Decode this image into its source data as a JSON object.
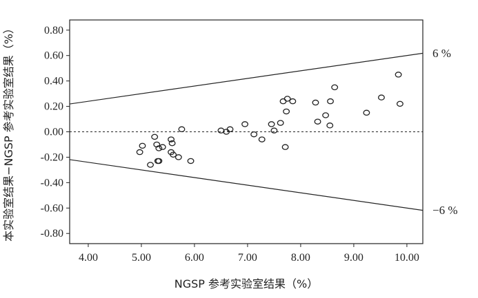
{
  "chart_data": {
    "type": "scatter",
    "title": "",
    "xlabel": "NGSP 参考实验室结果（%）",
    "ylabel": "本实验室结果−NGSP 参考实验室结果（%）",
    "xlim": [
      3.65,
      10.3
    ],
    "ylim": [
      -0.88,
      0.88
    ],
    "x_ticks": [
      "4.00",
      "5.00",
      "6.00",
      "7.00",
      "8.00",
      "9.00",
      "10.00"
    ],
    "x_tick_values": [
      4,
      5,
      6,
      7,
      8,
      9,
      10
    ],
    "y_ticks": [
      "0.80",
      "0.60",
      "0.40",
      "0.20",
      "0.00",
      "-0.20",
      "-0.40",
      "-0.60",
      "-0.80"
    ],
    "y_tick_values": [
      0.8,
      0.6,
      0.4,
      0.2,
      0.0,
      -0.2,
      -0.4,
      -0.6,
      -0.8
    ],
    "grid": false,
    "reference_lines": {
      "upper": {
        "label": "6 %",
        "slope": 0.06,
        "intercept": 0
      },
      "lower": {
        "label": "−6 %",
        "slope": -0.06,
        "intercept": 0
      },
      "zero": {
        "y": 0,
        "style": "dashed"
      }
    },
    "points": [
      {
        "x": 4.97,
        "y": -0.16
      },
      {
        "x": 5.02,
        "y": -0.11
      },
      {
        "x": 5.17,
        "y": -0.26
      },
      {
        "x": 5.25,
        "y": -0.04
      },
      {
        "x": 5.29,
        "y": -0.1
      },
      {
        "x": 5.31,
        "y": -0.23
      },
      {
        "x": 5.33,
        "y": -0.23
      },
      {
        "x": 5.33,
        "y": -0.13
      },
      {
        "x": 5.4,
        "y": -0.12
      },
      {
        "x": 5.56,
        "y": -0.06
      },
      {
        "x": 5.58,
        "y": -0.09
      },
      {
        "x": 5.56,
        "y": -0.16
      },
      {
        "x": 5.6,
        "y": -0.18
      },
      {
        "x": 5.7,
        "y": -0.2
      },
      {
        "x": 5.76,
        "y": 0.02
      },
      {
        "x": 5.93,
        "y": -0.23
      },
      {
        "x": 6.5,
        "y": 0.01
      },
      {
        "x": 6.6,
        "y": 0.0
      },
      {
        "x": 6.67,
        "y": 0.02
      },
      {
        "x": 6.95,
        "y": 0.06
      },
      {
        "x": 7.12,
        "y": -0.02
      },
      {
        "x": 7.27,
        "y": -0.06
      },
      {
        "x": 7.45,
        "y": 0.06
      },
      {
        "x": 7.5,
        "y": 0.01
      },
      {
        "x": 7.62,
        "y": 0.07
      },
      {
        "x": 7.67,
        "y": 0.24
      },
      {
        "x": 7.71,
        "y": -0.12
      },
      {
        "x": 7.73,
        "y": 0.16
      },
      {
        "x": 7.75,
        "y": 0.26
      },
      {
        "x": 7.85,
        "y": 0.24
      },
      {
        "x": 8.28,
        "y": 0.23
      },
      {
        "x": 8.32,
        "y": 0.08
      },
      {
        "x": 8.47,
        "y": 0.13
      },
      {
        "x": 8.55,
        "y": 0.05
      },
      {
        "x": 8.56,
        "y": 0.24
      },
      {
        "x": 8.64,
        "y": 0.35
      },
      {
        "x": 9.24,
        "y": 0.15
      },
      {
        "x": 9.52,
        "y": 0.27
      },
      {
        "x": 9.84,
        "y": 0.45
      },
      {
        "x": 9.87,
        "y": 0.22
      }
    ]
  }
}
